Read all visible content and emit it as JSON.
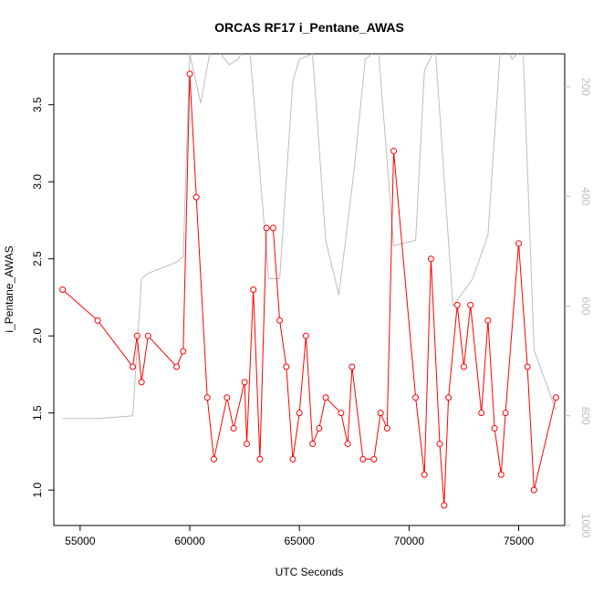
{
  "chart_data": {
    "type": "line",
    "title": "ORCAS RF17 i_Pentane_AWAS",
    "xlabel": "UTC Seconds",
    "ylabel": "i_Pentane_AWAS",
    "xlim": [
      53800,
      77100
    ],
    "ylim": [
      0.77,
      3.83
    ],
    "x_ticks": [
      55000,
      60000,
      65000,
      70000,
      75000
    ],
    "y_ticks": [
      1.0,
      1.5,
      2.0,
      2.5,
      3.0,
      3.5
    ],
    "x_tick_labels": [
      "55000",
      "60000",
      "65000",
      "70000",
      "75000"
    ],
    "y_tick_labels": [
      "1.0",
      "1.5",
      "2.0",
      "2.5",
      "3.0",
      "3.5"
    ],
    "secondary_axis": {
      "side": "right",
      "reversed": true,
      "ylim": [
        1000,
        140
      ],
      "ticks": [
        200,
        400,
        600,
        800,
        1000
      ],
      "tick_labels": [
        "200",
        "400",
        "600",
        "800",
        "1000"
      ],
      "color": "#bdbdbd"
    },
    "grid": false,
    "legend": "none",
    "series": [
      {
        "color": "#ff0000",
        "marker": "open-circle",
        "x": [
          54200,
          55800,
          57400,
          57600,
          57800,
          58100,
          59400,
          59700,
          60000,
          60300,
          60800,
          61100,
          61700,
          62000,
          62500,
          62600,
          62900,
          63200,
          63500,
          63800,
          64100,
          64400,
          64700,
          65000,
          65300,
          65600,
          65900,
          66200,
          66900,
          67200,
          67400,
          67900,
          68400,
          68700,
          69000,
          69300,
          70300,
          70700,
          71000,
          71400,
          71600,
          71800,
          72200,
          72500,
          72800,
          73300,
          73600,
          73900,
          74200,
          74400,
          75000,
          75400,
          75700,
          76700
        ],
        "y": [
          2.3,
          2.1,
          1.8,
          2.0,
          1.7,
          2.0,
          1.8,
          1.9,
          3.7,
          2.9,
          1.6,
          1.2,
          1.6,
          1.4,
          1.7,
          1.3,
          2.3,
          1.2,
          2.7,
          2.7,
          2.1,
          1.8,
          1.2,
          1.5,
          2.0,
          1.3,
          1.4,
          1.6,
          1.5,
          1.3,
          1.8,
          1.2,
          1.2,
          1.5,
          1.4,
          3.2,
          1.6,
          1.1,
          2.5,
          1.3,
          0.9,
          1.6,
          2.2,
          1.8,
          2.2,
          1.5,
          2.1,
          1.4,
          1.1,
          1.5,
          2.6,
          1.8,
          1.0,
          1.6
        ]
      },
      {
        "color": "#bdbdbd",
        "axis": "right",
        "x": [
          54200,
          55800,
          57400,
          57800,
          58100,
          59400,
          59700,
          60000,
          60500,
          61000,
          61800,
          62200,
          62700,
          63600,
          64100,
          64700,
          65000,
          65600,
          66200,
          66800,
          67500,
          68000,
          68600,
          69300,
          70300,
          70700,
          71200,
          72000,
          72900,
          73600,
          74200,
          74700,
          75200,
          75700,
          76700
        ],
        "y": [
          805,
          805,
          800,
          550,
          540,
          520,
          510,
          140,
          230,
          120,
          160,
          150,
          115,
          550,
          550,
          190,
          150,
          140,
          480,
          580,
          350,
          150,
          130,
          490,
          480,
          170,
          130,
          600,
          550,
          470,
          110,
          150,
          130,
          680,
          790
        ]
      }
    ]
  }
}
